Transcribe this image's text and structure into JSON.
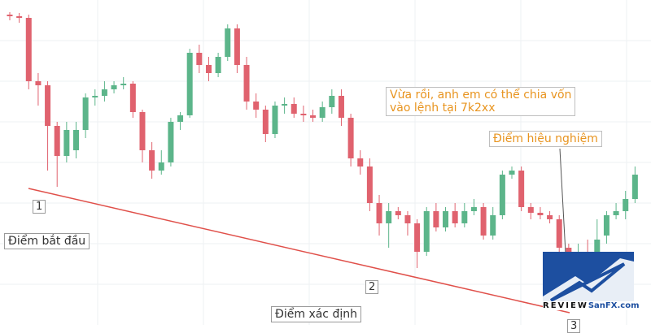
{
  "chart_data": {
    "type": "candlestick",
    "up_color": "#5cb58a",
    "down_color": "#e0626e",
    "ylim": [
      0,
      400
    ],
    "open": [
      382,
      380,
      378,
      300,
      295,
      245,
      208,
      215,
      240,
      280,
      282,
      290,
      295,
      297,
      262,
      215,
      190,
      200,
      250,
      258,
      335,
      320,
      310,
      330,
      365,
      320,
      275,
      265,
      235,
      270,
      272,
      260,
      258,
      255,
      268,
      282,
      255,
      205,
      195,
      150,
      125,
      140,
      135,
      125,
      90,
      140,
      120,
      140,
      125,
      140,
      145,
      110,
      135,
      185,
      190,
      145,
      138,
      135,
      130,
      95,
      85,
      90,
      50,
      110,
      135,
      140,
      155
    ],
    "close": [
      380,
      378,
      300,
      295,
      245,
      208,
      240,
      240,
      280,
      282,
      290,
      295,
      297,
      262,
      215,
      190,
      200,
      250,
      258,
      335,
      320,
      310,
      330,
      365,
      320,
      275,
      265,
      235,
      270,
      272,
      260,
      258,
      255,
      268,
      282,
      255,
      205,
      195,
      150,
      125,
      140,
      135,
      125,
      90,
      140,
      120,
      140,
      125,
      140,
      145,
      110,
      135,
      185,
      190,
      145,
      138,
      135,
      130,
      95,
      85,
      90,
      50,
      105,
      135,
      140,
      155,
      185
    ],
    "high": [
      385,
      384,
      382,
      310,
      300,
      250,
      250,
      250,
      285,
      290,
      300,
      300,
      305,
      300,
      265,
      225,
      215,
      255,
      262,
      340,
      345,
      330,
      335,
      370,
      370,
      330,
      285,
      270,
      275,
      280,
      280,
      270,
      265,
      275,
      290,
      290,
      260,
      215,
      205,
      160,
      150,
      145,
      140,
      130,
      145,
      150,
      145,
      150,
      150,
      155,
      150,
      145,
      190,
      195,
      195,
      150,
      145,
      140,
      135,
      100,
      100,
      105,
      130,
      140,
      150,
      165,
      195
    ],
    "low": [
      375,
      372,
      290,
      270,
      190,
      170,
      200,
      205,
      230,
      270,
      275,
      285,
      290,
      255,
      200,
      180,
      185,
      195,
      240,
      255,
      310,
      300,
      305,
      325,
      310,
      265,
      255,
      225,
      230,
      260,
      255,
      250,
      250,
      250,
      260,
      245,
      195,
      185,
      140,
      110,
      95,
      130,
      110,
      70,
      85,
      115,
      115,
      120,
      120,
      135,
      105,
      105,
      130,
      180,
      140,
      130,
      130,
      125,
      85,
      75,
      70,
      40,
      45,
      100,
      130,
      130,
      150
    ],
    "annotations": [
      {
        "text": "1"
      },
      {
        "text": "Điểm bắt đầu"
      },
      {
        "text": "2"
      },
      {
        "text": "Điểm xác định"
      },
      {
        "text": "3"
      },
      {
        "lines": [
          "Vừa rồi, anh em có thể chia vốn",
          "vào lệnh tại 7k2xx"
        ]
      },
      {
        "text": "Điểm hiệu nghiệm"
      }
    ],
    "logo": {
      "left": "REVIEW",
      "right": "SanFX.com"
    }
  }
}
